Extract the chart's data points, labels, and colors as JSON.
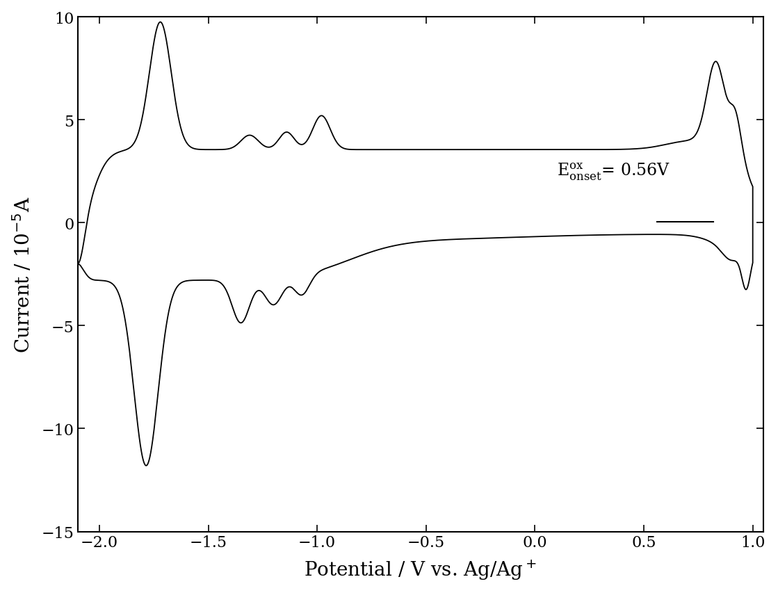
{
  "xlim": [
    -2.1,
    1.05
  ],
  "ylim": [
    -15,
    10
  ],
  "xlabel": "Potential / V vs. Ag/Ag$^+$",
  "ylabel": "Current / 10$^{-5}$A",
  "xticks": [
    -2.0,
    -1.5,
    -1.0,
    -0.5,
    0.0,
    0.5,
    1.0
  ],
  "yticks": [
    -15,
    -10,
    -5,
    0,
    5,
    10
  ],
  "line_color": "black",
  "bg_color": "white",
  "font_size_label": 20,
  "font_size_tick": 16,
  "font_size_annot": 17
}
